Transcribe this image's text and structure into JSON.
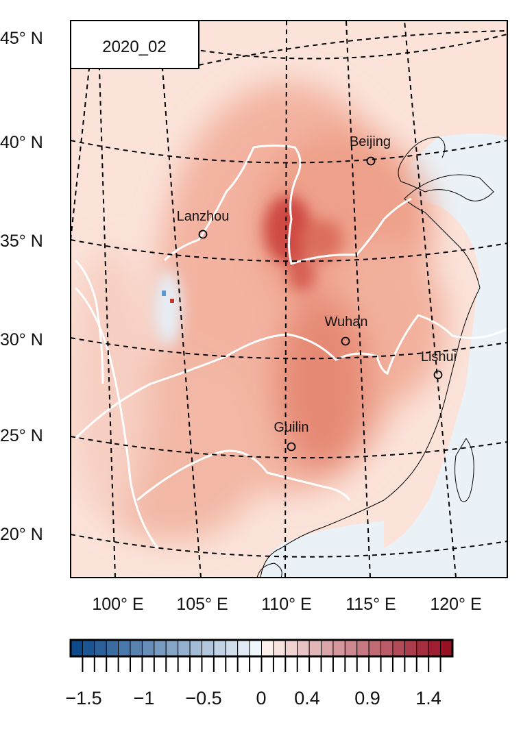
{
  "panel_label": "2020_02",
  "lat_labels": [
    "45° N",
    "40° N",
    "35° N",
    "30° N",
    "25° N",
    "20° N"
  ],
  "lon_labels": [
    "100° E",
    "105° E",
    "110° E",
    "115° E",
    "120° E"
  ],
  "cities": [
    {
      "name": "Beijing"
    },
    {
      "name": "Lanzhou"
    },
    {
      "name": "Wuhan"
    },
    {
      "name": "Lishui"
    },
    {
      "name": "Guilin"
    }
  ],
  "colorbar": {
    "tick_labels": [
      "−1.5",
      "−1",
      "−0.5",
      "0",
      "0.4",
      "0.9",
      "1.4"
    ],
    "n_bins": 32,
    "blue_range": [
      "#0d4a8c",
      "#eef5fb"
    ],
    "red_range": [
      "#fdf1ec",
      "#981024"
    ]
  },
  "colors": {
    "land_base": "#f6cbbd",
    "sea": "#eaf2f8",
    "river": "#ffffff",
    "grid": "#000000"
  }
}
